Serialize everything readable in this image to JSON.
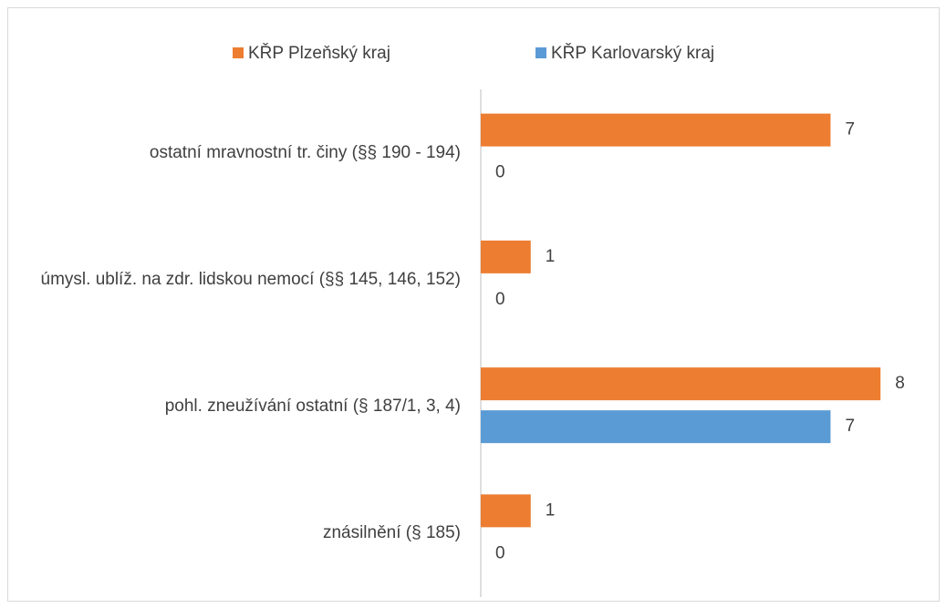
{
  "chart_data": {
    "type": "barh",
    "categories": [
      "ostatní mravnostní tr. činy (§§ 190 - 194)",
      "úmysl. ublíž. na zdr. lidskou nemocí (§§ 145, 146, 152)",
      "pohl. zneužívání ostatní (§ 187/1, 3, 4)",
      "znásilnění (§ 185)"
    ],
    "series": [
      {
        "name": "KŘP Plzeňský kraj",
        "color": "#ed7d31",
        "values": [
          7,
          1,
          8,
          1
        ]
      },
      {
        "name": "KŘP Karlovarský kraj",
        "color": "#5b9bd5",
        "values": [
          0,
          0,
          7,
          0
        ]
      }
    ],
    "xlim": [
      0,
      9
    ],
    "legend": "top"
  }
}
